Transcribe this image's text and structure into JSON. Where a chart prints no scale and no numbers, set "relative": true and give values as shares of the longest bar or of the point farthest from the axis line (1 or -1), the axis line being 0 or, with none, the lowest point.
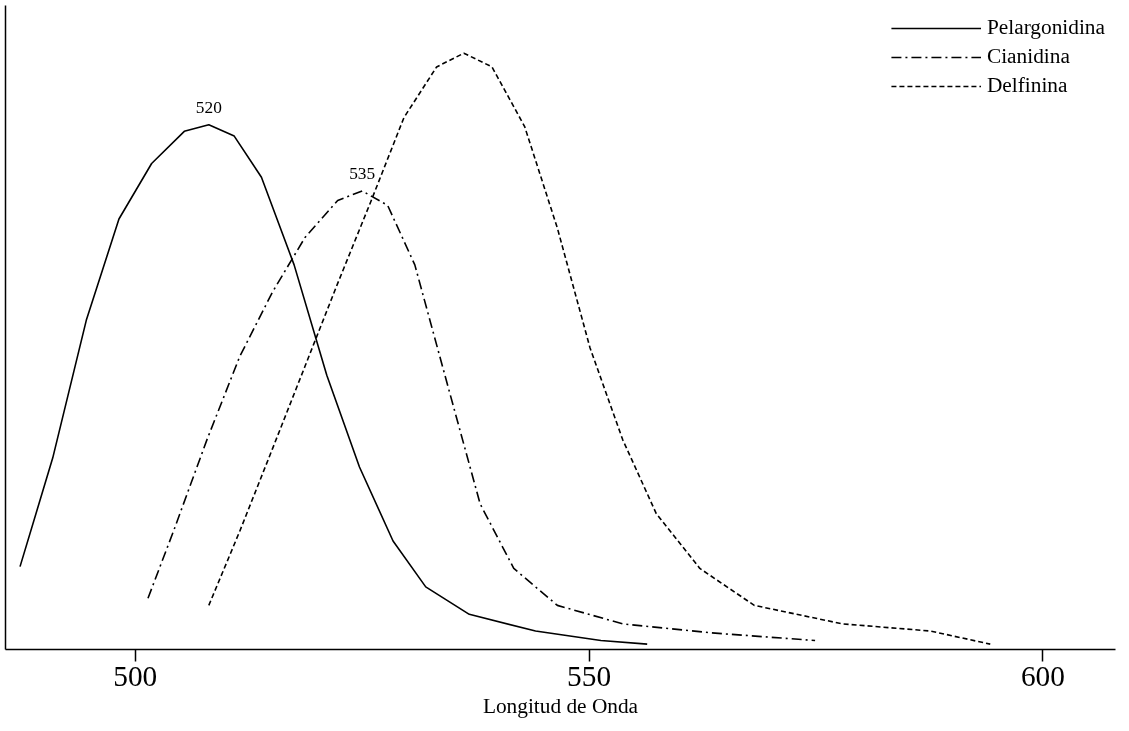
{
  "chart_data": {
    "type": "line",
    "relative": true,
    "xlabel": "Longitud de Onda",
    "xlim": [
      485.7,
      608
    ],
    "xticks": [
      500,
      550,
      600
    ],
    "grid": false,
    "legend": "top right",
    "marker": "none",
    "series": [
      {
        "name": "Pelargonidina",
        "color": "#000000",
        "line_style": "solid",
        "x": [
          487.3,
          490.9,
          494.6,
          498.2,
          501.8,
          505.4,
          508.1,
          510.9,
          513.9,
          517.5,
          521.1,
          524.7,
          528.4,
          532.0,
          536.8,
          544.1,
          551.3,
          556.4
        ],
        "values": [
          0.139,
          0.321,
          0.552,
          0.722,
          0.815,
          0.869,
          0.88,
          0.861,
          0.792,
          0.645,
          0.46,
          0.306,
          0.182,
          0.105,
          0.059,
          0.031,
          0.015,
          0.009
        ]
      },
      {
        "name": "Cianidina",
        "color": "#000000",
        "line_style": "dashdot",
        "x": [
          501.4,
          504.2,
          507.9,
          511.5,
          515.1,
          518.7,
          522.3,
          525.0,
          527.8,
          530.8,
          534.4,
          538.0,
          541.7,
          546.5,
          553.7,
          563.4,
          574.9
        ],
        "values": [
          0.086,
          0.198,
          0.352,
          0.491,
          0.599,
          0.691,
          0.753,
          0.769,
          0.745,
          0.645,
          0.444,
          0.244,
          0.136,
          0.074,
          0.043,
          0.028,
          0.015
        ]
      },
      {
        "name": "Delfinina",
        "color": "#000000",
        "line_style": "dashed",
        "x": [
          508.1,
          511.5,
          515.1,
          518.7,
          522.3,
          526.0,
          529.6,
          533.2,
          536.2,
          539.3,
          542.9,
          546.5,
          550.1,
          553.7,
          557.4,
          562.2,
          568.2,
          577.9,
          587.6,
          594.2
        ],
        "values": [
          0.074,
          0.198,
          0.336,
          0.475,
          0.614,
          0.753,
          0.892,
          0.977,
          1,
          0.977,
          0.877,
          0.707,
          0.506,
          0.352,
          0.228,
          0.136,
          0.074,
          0.043,
          0.031,
          0.009
        ]
      }
    ],
    "annotations": [
      {
        "text": "520",
        "x": 508.1,
        "y": 0.88
      },
      {
        "text": "535",
        "x": 525.0,
        "y": 0.769
      }
    ]
  }
}
